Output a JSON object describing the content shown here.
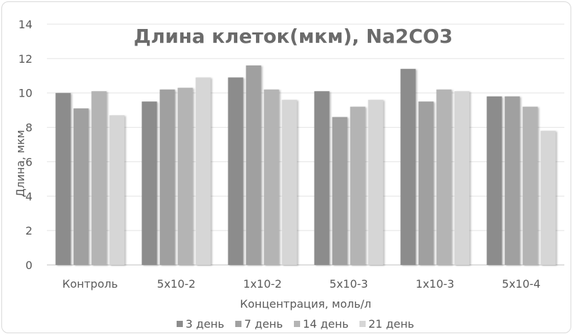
{
  "chart_data": {
    "type": "bar",
    "title": "Длина клеток(мкм), Na2CO3",
    "xlabel": "Концентрация, моль/л",
    "ylabel": "Длина, мкм",
    "ylim": [
      0,
      14
    ],
    "yticks": [
      0,
      2,
      4,
      6,
      8,
      10,
      12,
      14
    ],
    "grid": true,
    "legend_position": "bottom",
    "categories": [
      "Контроль",
      "5x10-2",
      "1x10-2",
      "5x10-3",
      "1x10-3",
      "5x10-4"
    ],
    "series": [
      {
        "name": "3 день",
        "color": "#8c8c8c",
        "values": [
          10.0,
          9.5,
          10.9,
          10.1,
          11.4,
          9.8
        ]
      },
      {
        "name": "7 день",
        "color": "#a0a0a0",
        "values": [
          9.1,
          10.2,
          11.6,
          8.6,
          9.5,
          9.8
        ]
      },
      {
        "name": "14 день",
        "color": "#b4b4b4",
        "values": [
          10.1,
          10.3,
          10.2,
          9.2,
          10.2,
          9.2
        ]
      },
      {
        "name": "21 день",
        "color": "#d6d6d6",
        "values": [
          8.7,
          10.9,
          9.6,
          9.6,
          10.1,
          7.8
        ]
      }
    ]
  }
}
